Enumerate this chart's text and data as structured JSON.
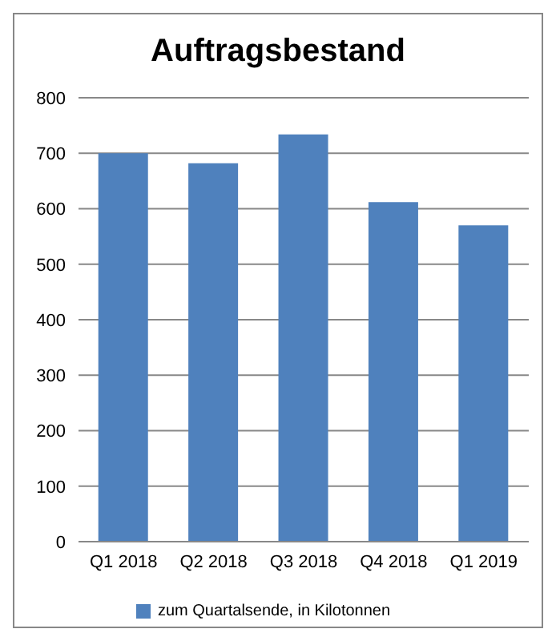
{
  "chart_data": {
    "type": "bar",
    "title": "Auftragsbestand",
    "categories": [
      "Q1 2018",
      "Q2 2018",
      "Q3 2018",
      "Q4 2018",
      "Q1 2019"
    ],
    "series": [
      {
        "name": "zum Quartalsende, in Kilotonnen",
        "color": "#4f81bd",
        "values": [
          700,
          682,
          734,
          612,
          570
        ]
      }
    ],
    "ylim": [
      0,
      800
    ],
    "yticks": [
      0,
      100,
      200,
      300,
      400,
      500,
      600,
      700,
      800
    ],
    "grid": "y",
    "legend": "bottom"
  }
}
